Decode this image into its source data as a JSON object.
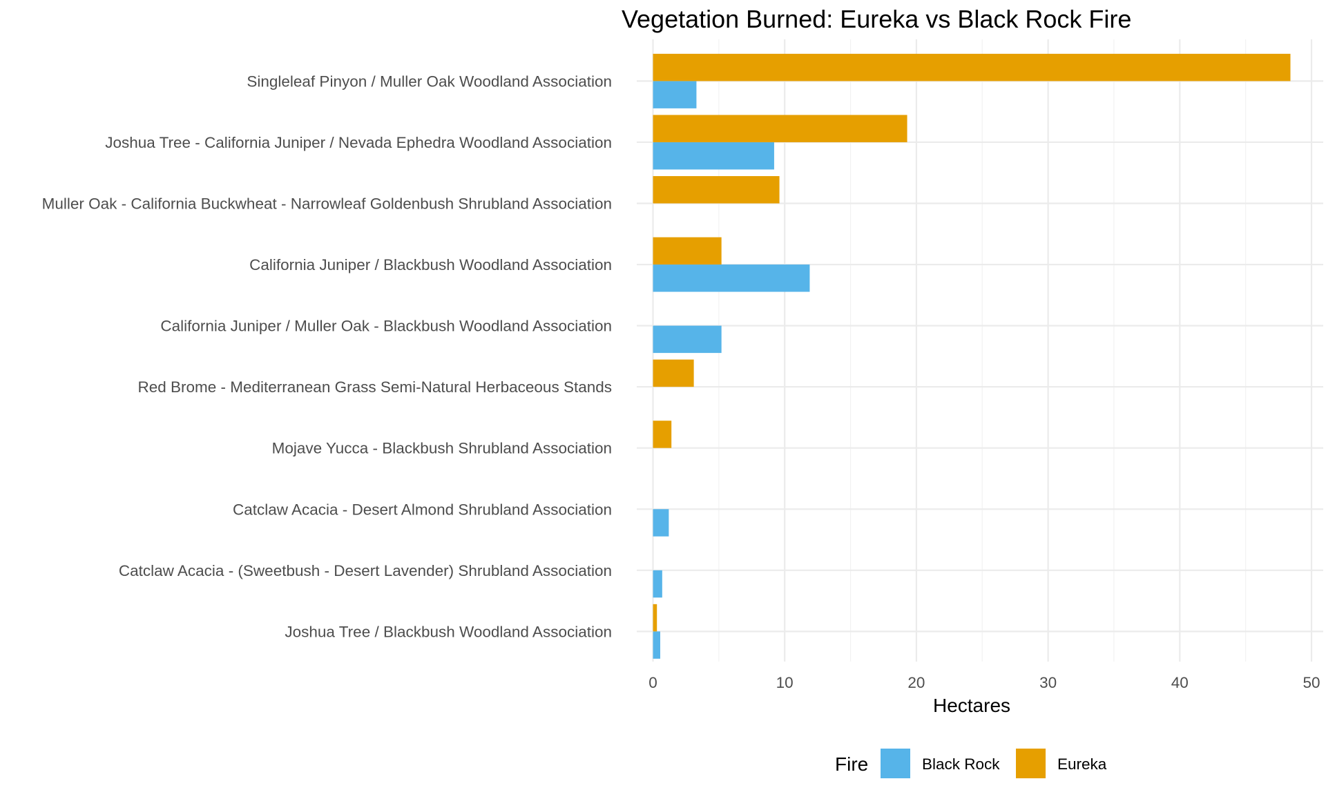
{
  "chart_data": {
    "type": "bar",
    "orientation": "horizontal",
    "title": "Vegetation Burned: Eureka vs Black Rock Fire",
    "xlabel": "Hectares",
    "ylabel": "",
    "xlim": [
      0,
      50
    ],
    "x_ticks": [
      0,
      10,
      20,
      30,
      40,
      50
    ],
    "grid": true,
    "legend_position": "bottom",
    "legend_title": "Fire",
    "categories": [
      "Singleleaf Pinyon / Muller Oak Woodland Association",
      "Joshua Tree - California Juniper / Nevada Ephedra Woodland Association",
      "Muller Oak - California Buckwheat - Narrowleaf Goldenbush Shrubland Association",
      "California Juniper / Blackbush Woodland Association",
      "California Juniper / Muller Oak - Blackbush Woodland Association",
      "Red Brome - Mediterranean Grass Semi-Natural Herbaceous Stands",
      "Mojave Yucca - Blackbush Shrubland Association",
      "Catclaw Acacia - Desert Almond Shrubland Association",
      "Catclaw Acacia - (Sweetbush - Desert Lavender) Shrubland Association",
      "Joshua Tree / Blackbush Woodland Association"
    ],
    "series": [
      {
        "name": "Black Rock",
        "color": "#56B4E9",
        "values": [
          3.3,
          9.2,
          null,
          11.9,
          5.2,
          null,
          null,
          1.2,
          0.7,
          0.55
        ]
      },
      {
        "name": "Eureka",
        "color": "#E69F00",
        "values": [
          48.4,
          19.3,
          9.6,
          5.2,
          null,
          3.1,
          1.4,
          null,
          null,
          0.3
        ]
      }
    ]
  }
}
